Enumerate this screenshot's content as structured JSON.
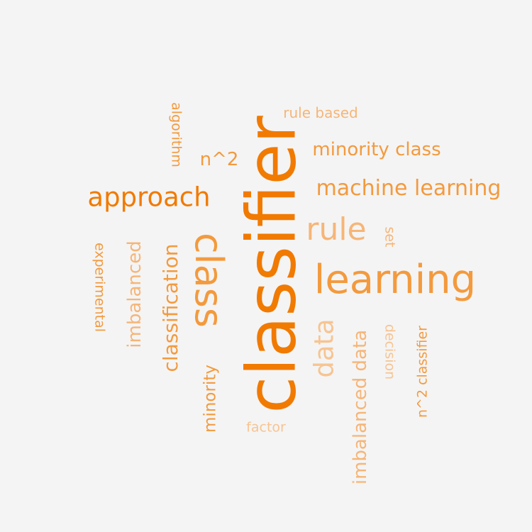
{
  "palette": {
    "dark": "#f17a00",
    "mid": "#f39a3e",
    "light": "#f6b577",
    "pale": "#f7c491"
  },
  "words": [
    {
      "text": "classifier",
      "color": "dark"
    },
    {
      "text": "learning",
      "color": "mid"
    },
    {
      "text": "class",
      "color": "mid"
    },
    {
      "text": "rule",
      "color": "light"
    },
    {
      "text": "approach",
      "color": "dark"
    },
    {
      "text": "machine learning",
      "color": "mid"
    },
    {
      "text": "data",
      "color": "pale"
    },
    {
      "text": "classification",
      "color": "mid"
    },
    {
      "text": "imbalanced data",
      "color": "light"
    },
    {
      "text": "minority class",
      "color": "mid"
    },
    {
      "text": "imbalanced",
      "color": "light"
    },
    {
      "text": "n^2",
      "color": "mid"
    },
    {
      "text": "minority",
      "color": "mid"
    },
    {
      "text": "experimental",
      "color": "mid"
    },
    {
      "text": "n^2 classifier",
      "color": "mid"
    },
    {
      "text": "decision",
      "color": "pale"
    },
    {
      "text": "set",
      "color": "light"
    },
    {
      "text": "algorithm",
      "color": "mid"
    },
    {
      "text": "rule based",
      "color": "light"
    },
    {
      "text": "factor",
      "color": "pale"
    }
  ]
}
